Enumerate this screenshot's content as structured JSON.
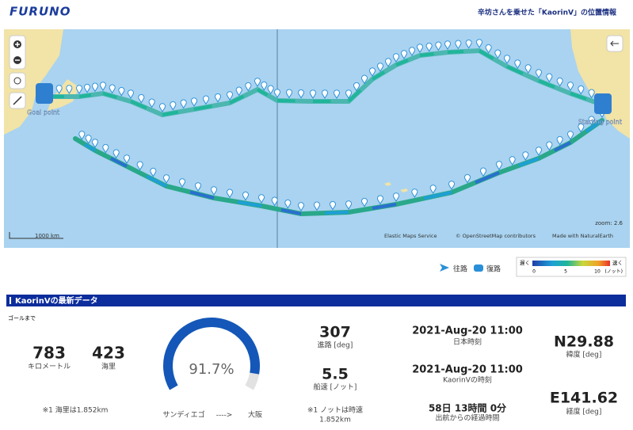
{
  "header": {
    "logo": "FURUNO",
    "title": "辛坊さんを乗せた「KaorinⅤ」の位置情報"
  },
  "map": {
    "goal": "Goal point",
    "start": "Starting point",
    "zoom": "zoom: 2.6",
    "scale": "1000 km",
    "attribution": [
      "Elastic Maps Service",
      "© OpenStreetMap contributors",
      "Made with NaturalEarth"
    ]
  },
  "legend": {
    "outbound": "往路",
    "return": "復路",
    "slow": "遅く",
    "fast": "速く",
    "ticks": [
      0,
      5,
      10
    ],
    "unit": "(ノット)"
  },
  "section": {
    "title": "KaorinⅤの最新データ"
  },
  "distance": {
    "label": "ゴールまで",
    "km": 783,
    "km_unit": "キロメートル",
    "nm": 423,
    "nm_unit": "海里",
    "note": "※1 海里は1.852km"
  },
  "progress": {
    "value": 91.7,
    "value_label": "91.7%",
    "from": "サンディエゴ",
    "arrow": "---->",
    "to": "大阪"
  },
  "course": {
    "value": 307,
    "label": "進路 [deg]"
  },
  "speed": {
    "value": 5.5,
    "label": "船速 [ノット]",
    "note": [
      "※1 ノットは時速",
      "1.852km"
    ]
  },
  "time": {
    "japan": "2021-Aug-20 11:00",
    "japan_label": "日本時刻",
    "boat": "2021-Aug-20 11:00",
    "boat_label": "KaorinⅤの時刻",
    "elapsed": "58日 13時間 0分",
    "elapsed_label": "出航からの経過時間"
  },
  "position": {
    "lat": "N29.88",
    "lat_label": "緯度 [deg]",
    "lon": "E141.62",
    "lon_label": "経度 [deg]"
  }
}
